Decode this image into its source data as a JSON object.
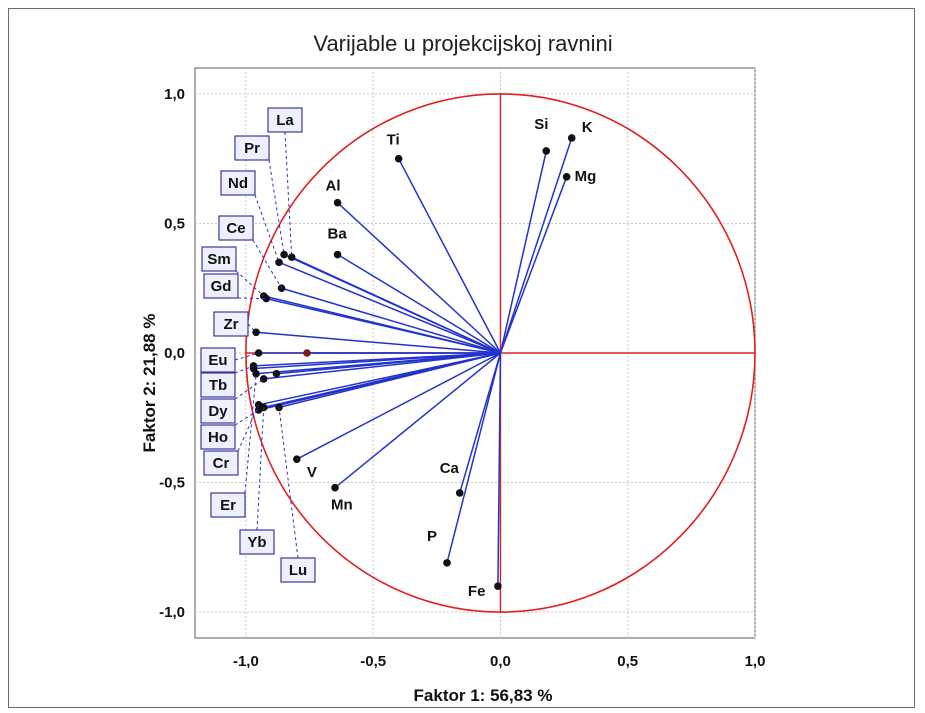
{
  "chart_data": {
    "type": "scatter",
    "title": "Varijable u projekcijskoj ravnini",
    "xlabel": "Faktor 1: 56,83 %",
    "ylabel": "Faktor 2: 21,88 %",
    "xlim": [
      -1.2,
      1.0
    ],
    "ylim": [
      -1.1,
      1.1
    ],
    "xticks": [
      "-1,0",
      "-0,5",
      "0,0",
      "0,5",
      "1,0"
    ],
    "yticks": [
      "1,0",
      "0,5",
      "0,0",
      "-0,5",
      "-1,0"
    ],
    "grid": true,
    "unit_circle": true,
    "variables": [
      {
        "label": "Si",
        "x": 0.18,
        "y": 0.78,
        "boxed": false
      },
      {
        "label": "K",
        "x": 0.28,
        "y": 0.83,
        "boxed": false
      },
      {
        "label": "Mg",
        "x": 0.26,
        "y": 0.68,
        "boxed": false
      },
      {
        "label": "Ti",
        "x": -0.4,
        "y": 0.75,
        "boxed": false
      },
      {
        "label": "Al",
        "x": -0.64,
        "y": 0.58,
        "boxed": false
      },
      {
        "label": "Ba",
        "x": -0.64,
        "y": 0.38,
        "boxed": false
      },
      {
        "label": "V",
        "x": -0.8,
        "y": -0.41,
        "boxed": false
      },
      {
        "label": "Mn",
        "x": -0.65,
        "y": -0.52,
        "boxed": false
      },
      {
        "label": "Ca",
        "x": -0.16,
        "y": -0.54,
        "boxed": false
      },
      {
        "label": "P",
        "x": -0.21,
        "y": -0.81,
        "boxed": false
      },
      {
        "label": "Fe",
        "x": -0.01,
        "y": -0.9,
        "boxed": false
      },
      {
        "label": "La",
        "x": -0.82,
        "y": 0.37,
        "boxed": true
      },
      {
        "label": "Pr",
        "x": -0.85,
        "y": 0.38,
        "boxed": true
      },
      {
        "label": "Nd",
        "x": -0.87,
        "y": 0.35,
        "boxed": true
      },
      {
        "label": "Ce",
        "x": -0.86,
        "y": 0.25,
        "boxed": true
      },
      {
        "label": "Sm",
        "x": -0.93,
        "y": 0.22,
        "boxed": true
      },
      {
        "label": "Gd",
        "x": -0.92,
        "y": 0.21,
        "boxed": true
      },
      {
        "label": "Zr",
        "x": -0.96,
        "y": 0.08,
        "boxed": true
      },
      {
        "label": "Eu",
        "x": -0.95,
        "y": 0.0,
        "boxed": true
      },
      {
        "label": "Tb",
        "x": -0.97,
        "y": -0.05,
        "boxed": true
      },
      {
        "label": "Dy",
        "x": -0.93,
        "y": -0.1,
        "boxed": true
      },
      {
        "label": "Ho",
        "x": -0.95,
        "y": -0.22,
        "boxed": true
      },
      {
        "label": "Cr",
        "x": -0.95,
        "y": -0.2,
        "boxed": true
      },
      {
        "label": "Er",
        "x": -0.96,
        "y": -0.08,
        "boxed": true
      },
      {
        "label": "Yb",
        "x": -0.93,
        "y": -0.21,
        "boxed": true
      },
      {
        "label": "Lu",
        "x": -0.87,
        "y": -0.21,
        "boxed": true
      }
    ],
    "extra_points": [
      {
        "x": -0.97,
        "y": -0.06
      },
      {
        "x": -0.88,
        "y": -0.08
      },
      {
        "x": -0.76,
        "y": 0.0
      }
    ],
    "colors": {
      "vector": "#2233cc",
      "circle": "#e02020",
      "axes_cross": "#e02020",
      "point": "#111111",
      "grid": "#c8c8c8",
      "label_box_fill": "#eef0ff",
      "label_box_stroke": "#3a3a9a"
    }
  }
}
